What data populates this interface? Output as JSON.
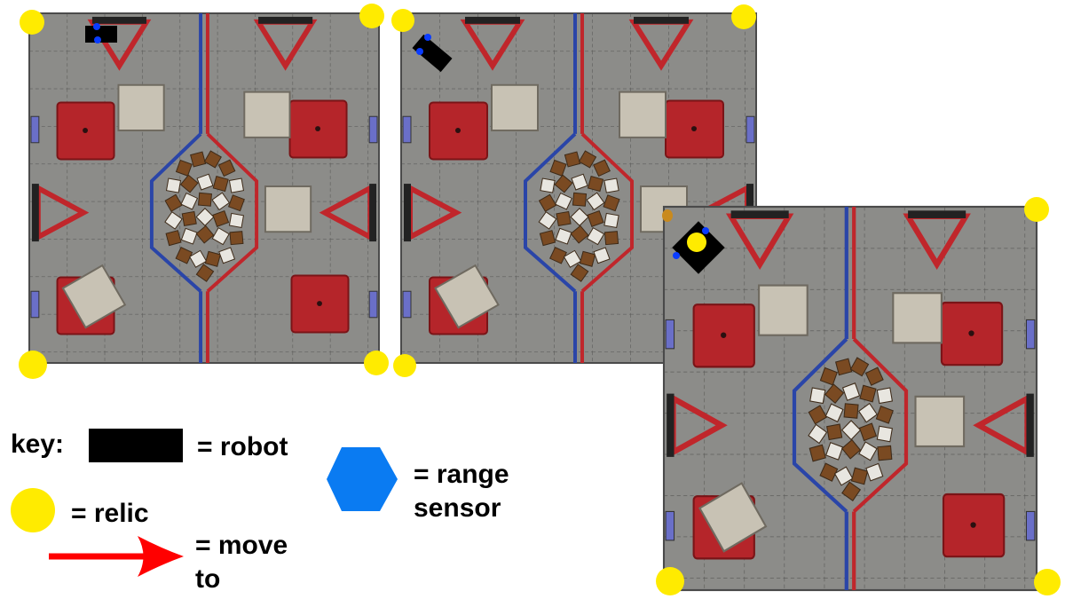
{
  "legend": {
    "key_label": "key:",
    "robot_label": "= robot",
    "relic_label": "= relic",
    "move_label": "= move to",
    "sensor_label": "= range sensor"
  },
  "colors": {
    "field_gray": "#8c8c89",
    "field_red": "#b5252a",
    "field_blue": "#2a45a8",
    "relic_yellow": "#ffeb00",
    "sensor_blue": "#0a7bf2",
    "arrow_red": "#ff0000",
    "robot_black": "#000000"
  }
}
